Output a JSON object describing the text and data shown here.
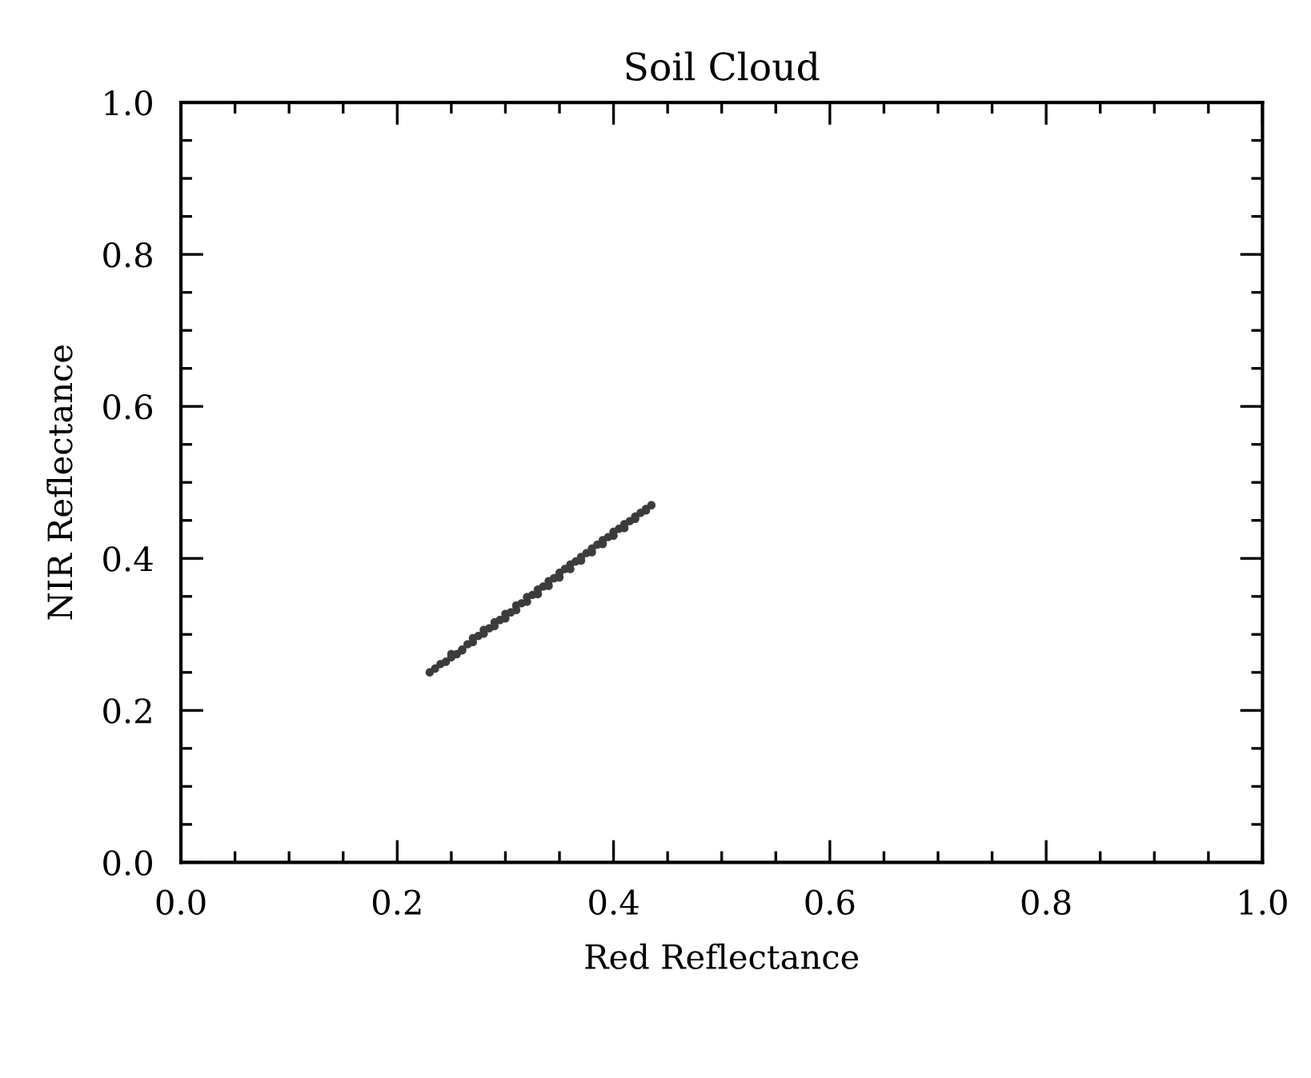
{
  "chart_data": {
    "type": "scatter",
    "title": "Soil Cloud",
    "xlabel": "Red Reflectance",
    "ylabel": "NIR Reflectance",
    "x": [
      0.23,
      0.235,
      0.24,
      0.245,
      0.25,
      0.255,
      0.26,
      0.265,
      0.27,
      0.275,
      0.28,
      0.285,
      0.29,
      0.295,
      0.3,
      0.305,
      0.31,
      0.315,
      0.32,
      0.325,
      0.33,
      0.335,
      0.34,
      0.345,
      0.35,
      0.355,
      0.36,
      0.365,
      0.37,
      0.375,
      0.38,
      0.385,
      0.39,
      0.395,
      0.4,
      0.405,
      0.41,
      0.415,
      0.42,
      0.425,
      0.43,
      0.435,
      0.25,
      0.26,
      0.27,
      0.28,
      0.29,
      0.3,
      0.31,
      0.32,
      0.33,
      0.34,
      0.35,
      0.36,
      0.37,
      0.38,
      0.39,
      0.4,
      0.41,
      0.42,
      0.43
    ],
    "values": [
      0.25,
      0.255,
      0.261,
      0.264,
      0.27,
      0.274,
      0.28,
      0.287,
      0.295,
      0.298,
      0.306,
      0.308,
      0.316,
      0.319,
      0.327,
      0.329,
      0.338,
      0.341,
      0.349,
      0.352,
      0.359,
      0.363,
      0.37,
      0.374,
      0.381,
      0.386,
      0.392,
      0.396,
      0.402,
      0.407,
      0.413,
      0.418,
      0.424,
      0.428,
      0.435,
      0.439,
      0.445,
      0.449,
      0.455,
      0.46,
      0.465,
      0.47,
      0.274,
      0.279,
      0.29,
      0.301,
      0.311,
      0.321,
      0.332,
      0.343,
      0.353,
      0.364,
      0.375,
      0.386,
      0.397,
      0.408,
      0.419,
      0.43,
      0.44,
      0.452,
      0.463
    ],
    "color": "#3c3c3c",
    "marker": "circle",
    "xlim": [
      0.0,
      1.0
    ],
    "ylim": [
      0.0,
      1.0
    ],
    "xticks": [
      {
        "value": 0.0,
        "label": "0.0"
      },
      0.2,
      0.4,
      0.6,
      0.8,
      {
        "value": 1.0,
        "label": "1.0"
      }
    ],
    "yticks": [
      {
        "value": 0.0,
        "label": "0.0"
      },
      0.2,
      0.4,
      0.6,
      0.8,
      {
        "value": 1.0,
        "label": "1.0"
      }
    ],
    "grid": false
  }
}
